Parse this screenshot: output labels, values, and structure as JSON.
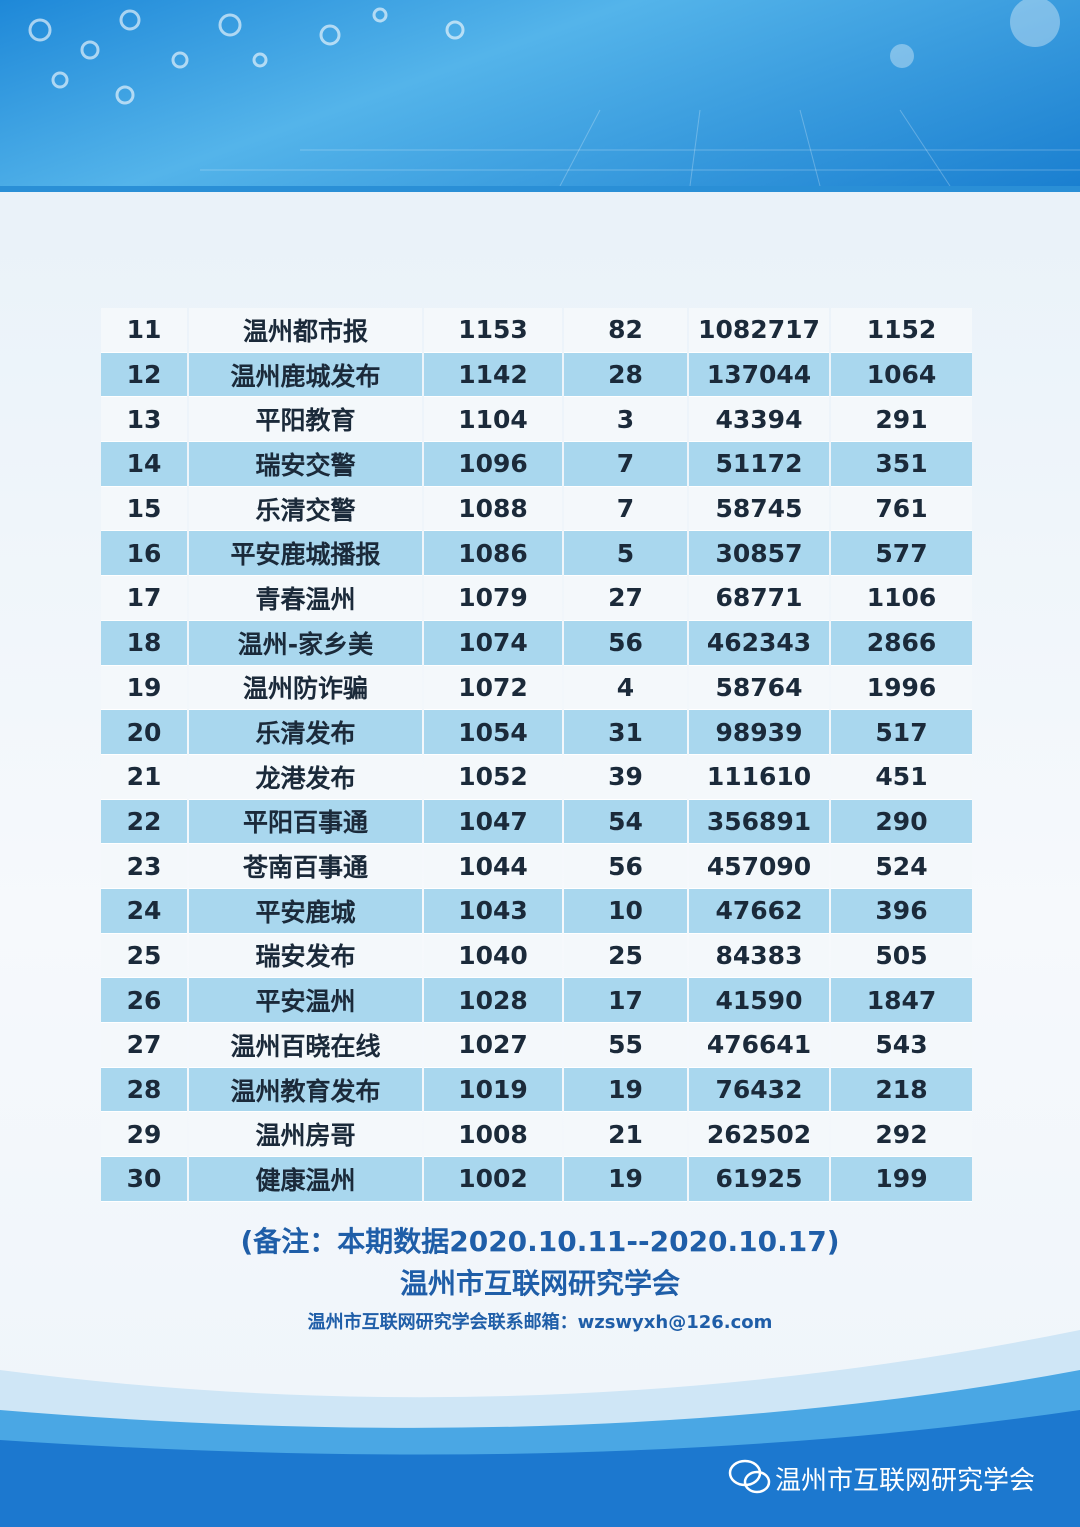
{
  "table": {
    "rows": [
      [
        11,
        "温州都市报",
        1153,
        82,
        1082717,
        1152
      ],
      [
        12,
        "温州鹿城发布",
        1142,
        28,
        137044,
        1064
      ],
      [
        13,
        "平阳教育",
        1104,
        3,
        43394,
        291
      ],
      [
        14,
        "瑞安交警",
        1096,
        7,
        51172,
        351
      ],
      [
        15,
        "乐清交警",
        1088,
        7,
        58745,
        761
      ],
      [
        16,
        "平安鹿城播报",
        1086,
        5,
        30857,
        577
      ],
      [
        17,
        "青春温州",
        1079,
        27,
        68771,
        1106
      ],
      [
        18,
        "温州-家乡美",
        1074,
        56,
        462343,
        2866
      ],
      [
        19,
        "温州防诈骗",
        1072,
        4,
        58764,
        1996
      ],
      [
        20,
        "乐清发布",
        1054,
        31,
        98939,
        517
      ],
      [
        21,
        "龙港发布",
        1052,
        39,
        111610,
        451
      ],
      [
        22,
        "平阳百事通",
        1047,
        54,
        356891,
        290
      ],
      [
        23,
        "苍南百事通",
        1044,
        56,
        457090,
        524
      ],
      [
        24,
        "平安鹿城",
        1043,
        10,
        47662,
        396
      ],
      [
        25,
        "瑞安发布",
        1040,
        25,
        84383,
        505
      ],
      [
        26,
        "平安温州",
        1028,
        17,
        41590,
        1847
      ],
      [
        27,
        "温州百晓在线",
        1027,
        55,
        476641,
        543
      ],
      [
        28,
        "温州教育发布",
        1019,
        19,
        76432,
        218
      ],
      [
        29,
        "温州房哥",
        1008,
        21,
        262502,
        292
      ],
      [
        30,
        "健康温州",
        1002,
        19,
        61925,
        199
      ]
    ]
  },
  "footer": {
    "note": "(备注：本期数据2020.10.11--2020.10.17)",
    "org": "温州市互联网研究学会",
    "contact": "温州市互联网研究学会联系邮箱：wzswyxh@126.com"
  },
  "watermark": "温州市互联网研究学会"
}
